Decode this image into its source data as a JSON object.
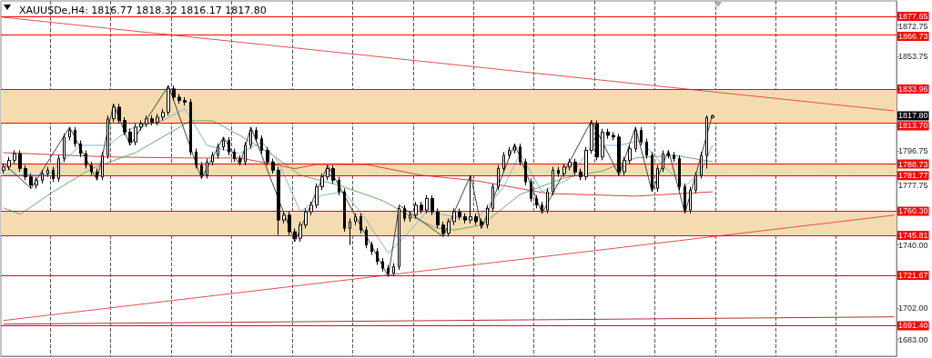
{
  "chart_data": {
    "type": "candlestick",
    "title": "XAUUSDe,H4: 1816.77 1818.32 1816.17 1817.80",
    "categories": [
      null,
      null,
      null,
      null,
      null,
      null,
      null,
      null,
      null,
      null,
      null,
      null,
      null,
      null,
      null,
      null,
      null,
      null,
      null,
      null,
      null,
      null,
      null,
      null,
      null,
      null,
      null,
      null,
      null,
      null,
      null,
      null,
      null,
      null,
      null,
      null,
      null,
      null,
      null,
      null,
      null,
      null,
      null,
      null,
      null,
      null,
      null,
      null,
      null,
      null,
      null,
      null,
      null,
      null,
      null,
      null,
      null,
      null,
      null,
      null,
      null,
      null,
      null,
      null,
      null,
      null,
      null,
      null,
      null,
      null,
      null,
      null,
      null,
      null,
      null,
      null,
      null,
      null,
      null,
      null,
      null,
      null,
      null,
      null,
      null,
      null,
      null,
      null,
      null,
      null,
      null,
      null,
      null,
      null,
      null,
      null,
      null,
      null,
      null,
      null,
      null,
      null,
      null,
      null,
      null,
      null,
      null,
      null,
      null,
      null,
      null,
      null,
      null,
      null,
      null,
      null,
      null,
      null,
      null,
      null,
      null,
      null,
      null,
      null,
      null,
      null,
      null,
      null,
      null,
      null,
      null,
      null,
      null,
      null,
      null,
      null,
      null,
      null,
      null,
      null,
      null,
      null,
      null,
      null,
      null,
      null,
      null,
      null,
      null,
      null,
      null,
      null,
      null,
      null,
      null,
      null,
      null,
      null,
      null,
      null,
      null,
      null,
      null
    ],
    "ohlc": [
      [
        1785,
        1789,
        1783,
        1787
      ],
      [
        1787,
        1793,
        1785,
        1791
      ],
      [
        1791,
        1797,
        1789,
        1795
      ],
      [
        1795,
        1797,
        1784,
        1786
      ],
      [
        1786,
        1788,
        1779,
        1781
      ],
      [
        1781,
        1783,
        1774,
        1776
      ],
      [
        1776,
        1781,
        1774,
        1779
      ],
      [
        1779,
        1785,
        1777,
        1783
      ],
      [
        1783,
        1787,
        1781,
        1785
      ],
      [
        1785,
        1787,
        1778,
        1780
      ],
      [
        1780,
        1794,
        1778,
        1792
      ],
      [
        1792,
        1807,
        1790,
        1805
      ],
      [
        1805,
        1811,
        1803,
        1809
      ],
      [
        1809,
        1811,
        1799,
        1801
      ],
      [
        1801,
        1803,
        1793,
        1795
      ],
      [
        1795,
        1797,
        1786,
        1788
      ],
      [
        1788,
        1790,
        1782,
        1784
      ],
      [
        1784,
        1786,
        1779,
        1781
      ],
      [
        1781,
        1796,
        1779,
        1794
      ],
      [
        1794,
        1818,
        1792,
        1816
      ],
      [
        1816,
        1825,
        1814,
        1823
      ],
      [
        1823,
        1825,
        1813,
        1815
      ],
      [
        1815,
        1817,
        1806,
        1808
      ],
      [
        1808,
        1810,
        1800,
        1802
      ],
      [
        1802,
        1813,
        1800,
        1811
      ],
      [
        1811,
        1815,
        1809,
        1813
      ],
      [
        1813,
        1818,
        1811,
        1816
      ],
      [
        1816,
        1818,
        1812,
        1814
      ],
      [
        1814,
        1819,
        1812,
        1817
      ],
      [
        1817,
        1822,
        1815,
        1820
      ],
      [
        1820,
        1836,
        1818,
        1834
      ],
      [
        1834,
        1836,
        1827,
        1829
      ],
      [
        1829,
        1831,
        1825,
        1827
      ],
      [
        1827,
        1829,
        1824,
        1826
      ],
      [
        1826,
        1828,
        1794,
        1796
      ],
      [
        1796,
        1798,
        1786,
        1788
      ],
      [
        1788,
        1790,
        1780,
        1782
      ],
      [
        1782,
        1792,
        1780,
        1790
      ],
      [
        1790,
        1796,
        1788,
        1794
      ],
      [
        1794,
        1801,
        1792,
        1799
      ],
      [
        1799,
        1805,
        1797,
        1803
      ],
      [
        1803,
        1805,
        1794,
        1796
      ],
      [
        1796,
        1798,
        1790,
        1792
      ],
      [
        1792,
        1794,
        1788,
        1790
      ],
      [
        1790,
        1802,
        1788,
        1800
      ],
      [
        1800,
        1811,
        1798,
        1809
      ],
      [
        1809,
        1811,
        1802,
        1804
      ],
      [
        1804,
        1806,
        1795,
        1797
      ],
      [
        1797,
        1799,
        1788,
        1790
      ],
      [
        1790,
        1792,
        1783,
        1785
      ],
      [
        1785,
        1787,
        1746,
        1755
      ],
      [
        1755,
        1760,
        1753,
        1758
      ],
      [
        1758,
        1760,
        1746,
        1748
      ],
      [
        1748,
        1750,
        1742,
        1744
      ],
      [
        1744,
        1754,
        1742,
        1752
      ],
      [
        1752,
        1762,
        1750,
        1760
      ],
      [
        1760,
        1766,
        1758,
        1764
      ],
      [
        1764,
        1777,
        1762,
        1775
      ],
      [
        1775,
        1783,
        1773,
        1781
      ],
      [
        1781,
        1788,
        1779,
        1786
      ],
      [
        1786,
        1788,
        1777,
        1779
      ],
      [
        1779,
        1781,
        1770,
        1772
      ],
      [
        1772,
        1774,
        1748,
        1750
      ],
      [
        1750,
        1756,
        1740,
        1754
      ],
      [
        1754,
        1759,
        1752,
        1757
      ],
      [
        1757,
        1759,
        1747,
        1749
      ],
      [
        1749,
        1751,
        1738,
        1740
      ],
      [
        1740,
        1742,
        1734,
        1736
      ],
      [
        1736,
        1738,
        1728,
        1730
      ],
      [
        1730,
        1732,
        1724,
        1726
      ],
      [
        1726,
        1728,
        1721,
        1723
      ],
      [
        1723,
        1729,
        1721,
        1727
      ],
      [
        1727,
        1764,
        1725,
        1762
      ],
      [
        1762,
        1764,
        1754,
        1756
      ],
      [
        1756,
        1760,
        1754,
        1758
      ],
      [
        1758,
        1766,
        1756,
        1764
      ],
      [
        1764,
        1766,
        1759,
        1761
      ],
      [
        1761,
        1770,
        1759,
        1768
      ],
      [
        1768,
        1770,
        1758,
        1760
      ],
      [
        1760,
        1762,
        1750,
        1752
      ],
      [
        1752,
        1754,
        1745,
        1747
      ],
      [
        1747,
        1756,
        1745,
        1754
      ],
      [
        1754,
        1762,
        1752,
        1760
      ],
      [
        1760,
        1762,
        1755,
        1757
      ],
      [
        1757,
        1759,
        1753,
        1755
      ],
      [
        1755,
        1782,
        1753,
        1757
      ],
      [
        1757,
        1759,
        1752,
        1754
      ],
      [
        1754,
        1756,
        1750,
        1752
      ],
      [
        1752,
        1764,
        1750,
        1762
      ],
      [
        1762,
        1777,
        1760,
        1775
      ],
      [
        1775,
        1788,
        1773,
        1786
      ],
      [
        1786,
        1796,
        1784,
        1794
      ],
      [
        1794,
        1799,
        1792,
        1797
      ],
      [
        1797,
        1801,
        1795,
        1799
      ],
      [
        1799,
        1801,
        1788,
        1790
      ],
      [
        1790,
        1792,
        1776,
        1778
      ],
      [
        1778,
        1780,
        1766,
        1768
      ],
      [
        1768,
        1770,
        1762,
        1764
      ],
      [
        1764,
        1766,
        1759,
        1761
      ],
      [
        1761,
        1774,
        1759,
        1772
      ],
      [
        1772,
        1787,
        1770,
        1785
      ],
      [
        1785,
        1787,
        1781,
        1783
      ],
      [
        1783,
        1789,
        1781,
        1787
      ],
      [
        1787,
        1792,
        1785,
        1790
      ],
      [
        1790,
        1792,
        1782,
        1784
      ],
      [
        1784,
        1786,
        1779,
        1781
      ],
      [
        1781,
        1799,
        1779,
        1797
      ],
      [
        1797,
        1815,
        1795,
        1813
      ],
      [
        1813,
        1815,
        1791,
        1793
      ],
      [
        1793,
        1810,
        1791,
        1808
      ],
      [
        1808,
        1810,
        1804,
        1806
      ],
      [
        1806,
        1808,
        1803,
        1805
      ],
      [
        1805,
        1807,
        1782,
        1784
      ],
      [
        1784,
        1793,
        1782,
        1791
      ],
      [
        1791,
        1800,
        1789,
        1798
      ],
      [
        1798,
        1811,
        1796,
        1809
      ],
      [
        1809,
        1811,
        1800,
        1802
      ],
      [
        1802,
        1804,
        1792,
        1794
      ],
      [
        1794,
        1796,
        1772,
        1774
      ],
      [
        1774,
        1788,
        1772,
        1786
      ],
      [
        1786,
        1797,
        1784,
        1795
      ],
      [
        1795,
        1797,
        1792,
        1794
      ],
      [
        1794,
        1796,
        1790,
        1792
      ],
      [
        1792,
        1794,
        1773,
        1775
      ],
      [
        1775,
        1777,
        1759,
        1761
      ],
      [
        1761,
        1775,
        1759,
        1773
      ],
      [
        1773,
        1784,
        1771,
        1782
      ],
      [
        1782,
        1796,
        1780,
        1794
      ],
      [
        1794,
        1818,
        1786,
        1816.77
      ],
      [
        1816.77,
        1818.32,
        1816.17,
        1817.8
      ],
      null,
      null,
      null,
      null,
      null,
      null,
      null,
      null,
      null,
      null,
      null,
      null,
      null,
      null,
      null,
      null,
      null,
      null,
      null,
      null,
      null,
      null,
      null,
      null,
      null,
      null,
      null,
      null,
      null,
      null,
      null,
      null,
      null
    ],
    "series": [
      {
        "type": "line",
        "color": "#d94040",
        "values": [
          1795.6,
          null,
          null,
          null,
          null,
          null,
          null,
          null,
          null,
          null,
          null,
          null,
          null,
          null,
          null,
          null,
          null,
          null,
          null,
          1793,
          null,
          null,
          null,
          null,
          null,
          null,
          null,
          null,
          null,
          null,
          null,
          null,
          null,
          1792.4,
          null,
          null,
          null,
          null,
          null,
          null,
          null,
          null,
          null,
          1792.4,
          null,
          null,
          null,
          null,
          null,
          null,
          null,
          null,
          null,
          1786,
          null,
          null,
          null,
          1788.5,
          null,
          null,
          null,
          null,
          null,
          null,
          null,
          null,
          1788.5,
          null,
          null,
          null,
          null,
          null,
          null,
          null,
          null,
          null,
          1782,
          null,
          null,
          null,
          null,
          null,
          null,
          null,
          null,
          null,
          1778.7,
          null,
          null,
          null,
          null,
          null,
          null,
          null,
          null,
          null,
          null,
          null,
          null,
          1771,
          null,
          null,
          null,
          null,
          null,
          null,
          null,
          null,
          null,
          null,
          null,
          null,
          null,
          null,
          null,
          1769.4,
          null,
          null,
          null,
          null,
          null,
          null,
          null,
          null,
          null,
          null,
          null,
          null,
          null,
          1772,
          null,
          null,
          null,
          null,
          null,
          null,
          null,
          null,
          null,
          null,
          null,
          null,
          null,
          null,
          null,
          null,
          null,
          null,
          null,
          null,
          null,
          null,
          null,
          null,
          null,
          null,
          null,
          null,
          null,
          null,
          null,
          null,
          null
        ]
      },
      {
        "type": "line",
        "color": "#6aa86a",
        "values": [
          1762.3,
          null,
          null,
          1758.5,
          null,
          null,
          null,
          null,
          null,
          1772,
          null,
          null,
          null,
          null,
          null,
          null,
          1786,
          null,
          null,
          null,
          null,
          null,
          null,
          null,
          1795.6,
          null,
          null,
          null,
          null,
          null,
          null,
          1809,
          null,
          null,
          1814.8,
          null,
          null,
          null,
          1814.8,
          null,
          null,
          null,
          null,
          1806,
          null,
          null,
          null,
          null,
          null,
          1794,
          null,
          null,
          null,
          null,
          1782,
          null,
          null,
          null,
          null,
          null,
          null,
          1776,
          null,
          null,
          null,
          null,
          null,
          null,
          null,
          1766.7,
          null,
          null,
          null,
          null,
          1757.4,
          null,
          null,
          null,
          null,
          1750,
          null,
          null,
          1749,
          null,
          null,
          null,
          null,
          1752,
          null,
          null,
          null,
          null,
          null,
          null,
          1770.5,
          null,
          null,
          null,
          null,
          null,
          null,
          null,
          1780.3,
          null,
          null,
          null,
          null,
          null,
          null,
          1784.6,
          null,
          null,
          null,
          null,
          null,
          1792.4,
          null,
          null,
          null,
          null,
          null,
          null,
          1794,
          null,
          null,
          null,
          null,
          null,
          null,
          1790.2,
          null,
          null,
          null,
          null,
          null,
          null,
          null,
          null,
          null,
          null,
          null,
          null,
          null,
          null,
          null,
          null,
          null,
          null,
          null,
          null,
          null,
          null,
          null,
          null,
          null,
          null,
          null,
          null,
          null,
          null,
          null,
          null,
          null
        ]
      },
      {
        "type": "line",
        "color": "#7fb2d9",
        "values": [
          1782,
          null,
          null,
          null,
          null,
          null,
          null,
          null,
          1782,
          null,
          null,
          null,
          null,
          null,
          1800,
          null,
          null,
          null,
          null,
          1800,
          null,
          null,
          null,
          1810,
          null,
          null,
          null,
          null,
          null,
          1815,
          null,
          null,
          null,
          1822,
          null,
          null,
          null,
          1800,
          null,
          null,
          null,
          null,
          null,
          1795,
          null,
          null,
          null,
          1802,
          null,
          null,
          1790,
          null,
          null,
          null,
          1760,
          null,
          null,
          null,
          1770,
          null,
          null,
          null,
          1772,
          null,
          null,
          null,
          1755,
          null,
          null,
          null,
          1735,
          null,
          null,
          1745,
          null,
          null,
          null,
          1760,
          null,
          null,
          null,
          null,
          1757,
          null,
          null,
          null,
          1755,
          null,
          null,
          null,
          null,
          1775,
          null,
          null,
          1795,
          null,
          null,
          null,
          1772,
          null,
          null,
          null,
          null,
          1780,
          null,
          null,
          null,
          1800,
          null,
          null,
          null,
          null,
          1800,
          null,
          null,
          null,
          1803,
          null,
          null,
          null,
          1788,
          null,
          null,
          null,
          1775,
          null,
          null,
          1785,
          null,
          1800,
          null,
          null,
          null,
          null,
          null,
          null,
          null,
          null,
          null,
          null,
          null,
          null,
          null,
          null,
          null,
          null,
          null,
          null,
          null,
          null,
          null,
          null,
          null,
          null,
          null,
          null,
          null,
          null,
          null,
          null,
          null,
          null,
          null
        ]
      },
      {
        "type": "line",
        "color": "#404040",
        "values": [
          1789,
          null,
          null,
          null,
          null,
          1774,
          null,
          null,
          null,
          null,
          null,
          null,
          1811,
          null,
          null,
          null,
          null,
          1779,
          null,
          null,
          1825,
          null,
          null,
          1800,
          null,
          null,
          null,
          null,
          null,
          null,
          1836,
          null,
          null,
          null,
          null,
          null,
          1780,
          null,
          null,
          null,
          1805,
          null,
          null,
          1788,
          null,
          1811,
          null,
          null,
          null,
          null,
          null,
          null,
          null,
          1742,
          null,
          null,
          null,
          null,
          null,
          1788,
          null,
          null,
          null,
          null,
          null,
          null,
          null,
          null,
          null,
          null,
          1721,
          null,
          1764,
          null,
          null,
          null,
          null,
          null,
          null,
          null,
          1745,
          null,
          null,
          null,
          null,
          1782,
          null,
          1750,
          null,
          null,
          null,
          null,
          null,
          1801,
          null,
          null,
          null,
          null,
          1759,
          null,
          null,
          null,
          null,
          null,
          null,
          null,
          null,
          1815,
          null,
          null,
          null,
          null,
          1782,
          null,
          null,
          1811,
          null,
          null,
          1772,
          null,
          null,
          1797,
          null,
          null,
          1759,
          null,
          null,
          null,
          null,
          1818.3,
          null,
          null,
          null,
          null,
          null,
          null,
          null,
          null,
          null,
          null,
          null,
          null,
          null,
          null,
          null,
          null,
          null,
          null,
          null,
          null,
          null,
          null,
          null,
          null,
          null,
          null,
          null,
          null,
          null,
          null,
          null,
          null,
          null
        ]
      },
      {
        "type": "line",
        "color": "#e05050",
        "values": [
          1877.1,
          null,
          null,
          null,
          null,
          null,
          null,
          null,
          null,
          null,
          null,
          null,
          null,
          null,
          null,
          null,
          null,
          null,
          null,
          null,
          null,
          null,
          null,
          null,
          null,
          null,
          null,
          null,
          null,
          null,
          null,
          null,
          null,
          null,
          null,
          null,
          null,
          null,
          null,
          null,
          null,
          null,
          null,
          null,
          null,
          null,
          null,
          null,
          null,
          null,
          null,
          null,
          null,
          null,
          null,
          null,
          null,
          null,
          null,
          null,
          null,
          null,
          null,
          null,
          null,
          null,
          null,
          null,
          null,
          null,
          null,
          null,
          null,
          null,
          null,
          null,
          null,
          null,
          null,
          null,
          null,
          null,
          null,
          null,
          null,
          null,
          null,
          null,
          null,
          null,
          null,
          null,
          null,
          null,
          null,
          null,
          null,
          null,
          null,
          null,
          null,
          null,
          null,
          null,
          null,
          null,
          null,
          null,
          null,
          null,
          null,
          null,
          null,
          null,
          null,
          null,
          null,
          null,
          null,
          null,
          null,
          null,
          null,
          null,
          null,
          null,
          null,
          null,
          null,
          null,
          null,
          null,
          null,
          null,
          null,
          null,
          null,
          null,
          null,
          null,
          null,
          null,
          null,
          null,
          null,
          null,
          null,
          null,
          null,
          null,
          null,
          null,
          null,
          null,
          null,
          null,
          null,
          null,
          null,
          null,
          null,
          null,
          1820.8
        ]
      },
      {
        "type": "line",
        "color": "#e05050",
        "values": [
          1694.5,
          null,
          null,
          null,
          null,
          null,
          null,
          null,
          null,
          null,
          null,
          null,
          null,
          null,
          null,
          null,
          null,
          null,
          null,
          null,
          null,
          null,
          null,
          null,
          null,
          null,
          null,
          null,
          null,
          null,
          null,
          null,
          null,
          null,
          null,
          null,
          null,
          null,
          null,
          null,
          null,
          null,
          null,
          null,
          null,
          null,
          null,
          null,
          null,
          null,
          null,
          null,
          null,
          null,
          null,
          null,
          null,
          null,
          null,
          null,
          null,
          null,
          null,
          null,
          null,
          null,
          null,
          null,
          null,
          null,
          null,
          null,
          null,
          null,
          null,
          null,
          null,
          null,
          null,
          null,
          null,
          null,
          null,
          null,
          null,
          null,
          null,
          null,
          null,
          null,
          null,
          null,
          null,
          null,
          null,
          null,
          null,
          null,
          null,
          null,
          null,
          null,
          null,
          null,
          null,
          null,
          null,
          null,
          null,
          null,
          null,
          null,
          null,
          null,
          null,
          null,
          null,
          null,
          null,
          null,
          null,
          null,
          null,
          null,
          null,
          null,
          null,
          null,
          null,
          null,
          null,
          null,
          null,
          null,
          null,
          null,
          null,
          null,
          null,
          null,
          null,
          null,
          null,
          null,
          null,
          null,
          null,
          null,
          null,
          null,
          null,
          null,
          null,
          null,
          null,
          null,
          null,
          null,
          null,
          null,
          null,
          null,
          1757.9
        ]
      },
      {
        "type": "line",
        "color": "#b03030",
        "values": [
          1692.3,
          null,
          null,
          null,
          null,
          null,
          null,
          null,
          null,
          null,
          null,
          null,
          null,
          null,
          null,
          null,
          null,
          null,
          null,
          null,
          null,
          null,
          null,
          null,
          null,
          null,
          null,
          null,
          null,
          null,
          null,
          null,
          null,
          null,
          null,
          null,
          null,
          null,
          null,
          null,
          null,
          null,
          null,
          null,
          null,
          null,
          null,
          null,
          null,
          null,
          null,
          null,
          null,
          null,
          null,
          null,
          null,
          null,
          null,
          null,
          null,
          null,
          null,
          null,
          null,
          null,
          null,
          null,
          null,
          null,
          null,
          null,
          null,
          null,
          null,
          null,
          null,
          null,
          null,
          null,
          null,
          null,
          null,
          null,
          null,
          null,
          null,
          null,
          null,
          null,
          null,
          null,
          null,
          null,
          null,
          null,
          null,
          null,
          null,
          null,
          null,
          null,
          null,
          null,
          null,
          null,
          null,
          null,
          null,
          null,
          null,
          null,
          null,
          null,
          null,
          null,
          null,
          null,
          null,
          null,
          null,
          null,
          null,
          null,
          null,
          null,
          null,
          null,
          null,
          null,
          null,
          null,
          null,
          null,
          null,
          null,
          null,
          null,
          null,
          null,
          null,
          null,
          null,
          null,
          null,
          null,
          null,
          null,
          null,
          null,
          null,
          null,
          null,
          null,
          null,
          null,
          null,
          null,
          null,
          null,
          null,
          null,
          1696.7
        ]
      }
    ],
    "ylim": [
      1673,
      1887
    ],
    "yticks": [
      1872.75,
      1853.75,
      1796.75,
      1777.75,
      {
        "value": 1740,
        "label": "1740.00"
      },
      {
        "value": 1702,
        "label": "1702.00"
      },
      {
        "value": 1683,
        "label": "1683.00"
      }
    ],
    "ref_lines": [
      {
        "axis": "y",
        "value": 1877.65,
        "label": "1877.65",
        "color": "#ff0000"
      },
      {
        "axis": "y",
        "value": 1866.73,
        "label": "1866.73",
        "color": "#ff0000"
      },
      {
        "axis": "y",
        "value": 1833.96,
        "label": "1833.96",
        "color": "#ff0000"
      },
      {
        "axis": "y",
        "value": 1813.7,
        "label": "1813.70",
        "color": "#ff0000"
      },
      {
        "axis": "y",
        "value": 1788.73,
        "label": "1788.73",
        "color": "#ff0000"
      },
      {
        "axis": "y",
        "value": 1781.77,
        "label": "1781.77",
        "color": "#ff0000"
      },
      {
        "axis": "y",
        "value": 1760.3,
        "label": "1760.30",
        "color": "#ff0000"
      },
      {
        "axis": "y",
        "value": 1745.81,
        "label": "1745.81",
        "color": "#ff0000"
      },
      {
        "axis": "y",
        "value": 1721.67,
        "label": "1721.67",
        "color": "#ff0000"
      },
      {
        "axis": "y",
        "value": 1691.4,
        "label": "1691.40",
        "color": "#ff0000"
      }
    ],
    "bands": [
      {
        "axis": "y",
        "from": 1813.7,
        "to": 1833.96,
        "color": "#f5dcb0"
      },
      {
        "axis": "y",
        "from": 1781.77,
        "to": 1788.73,
        "color": "#f5dcb0"
      },
      {
        "axis": "y",
        "from": 1745.81,
        "to": 1760.3,
        "color": "#f5dcb0"
      }
    ],
    "annotations": [
      "1817.80"
    ],
    "grid": "x",
    "line_style": "solid",
    "tick_labels": "y"
  }
}
